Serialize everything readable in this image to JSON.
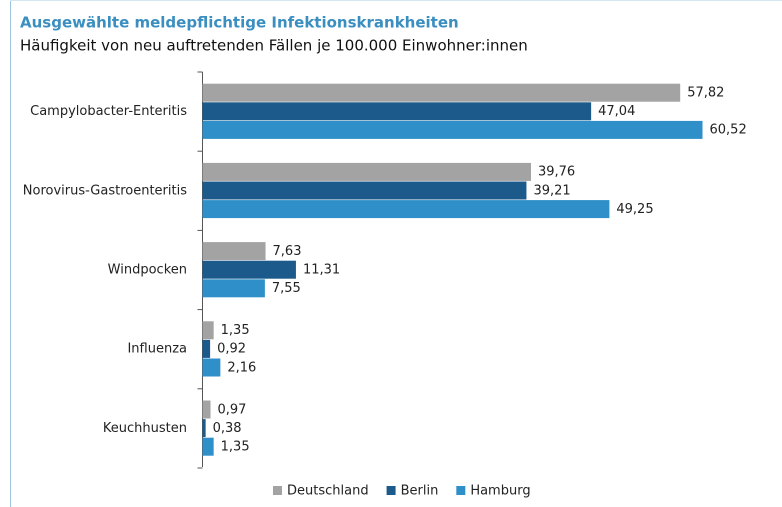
{
  "chart_data": {
    "type": "hbar",
    "title": "Ausgewählte meldepflichtige Infektionskrankheiten",
    "subtitle": "Häufigkeit von neu auftretenden  Fällen je 100.000 Einwohner:innen",
    "categories": [
      "Campylobacter-Enteritis",
      "Norovirus-Gastroenteritis",
      "Windpocken",
      "Influenza",
      "Keuchhusten"
    ],
    "series": [
      {
        "name": "Deutschland",
        "color": "#a3a3a3",
        "values": [
          57.82,
          39.76,
          7.63,
          1.35,
          0.97
        ],
        "value_labels": [
          "57,82",
          "39,76",
          "7,63",
          "1,35",
          "0,97"
        ]
      },
      {
        "name": "Berlin",
        "color": "#1d5a8c",
        "values": [
          47.04,
          39.21,
          11.31,
          0.92,
          0.38
        ],
        "value_labels": [
          "47,04",
          "39,21",
          "11,31",
          "0,92",
          "0,38"
        ]
      },
      {
        "name": "Hamburg",
        "color": "#2f8fc8",
        "values": [
          60.52,
          49.25,
          7.55,
          2.16,
          1.35
        ],
        "value_labels": [
          "60,52",
          "49,25",
          "7,55",
          "2,16",
          "1,35"
        ]
      }
    ],
    "legend": "bottom"
  }
}
